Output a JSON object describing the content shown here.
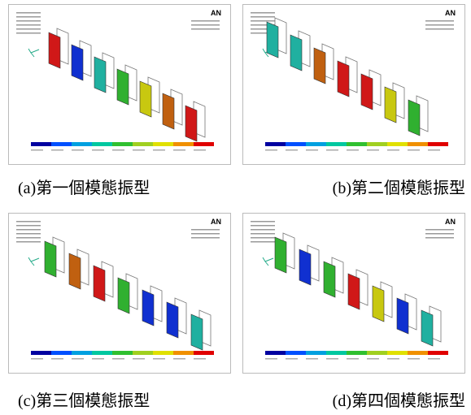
{
  "panels": [
    {
      "logo": "AN",
      "caption": "(a)第一個模態振型"
    },
    {
      "logo": "AN",
      "caption": "(b)第二個模態振型"
    },
    {
      "logo": "AN",
      "caption": "(c)第三個模態振型"
    },
    {
      "logo": "AN",
      "caption": "(d)第四個模態振型"
    }
  ]
}
